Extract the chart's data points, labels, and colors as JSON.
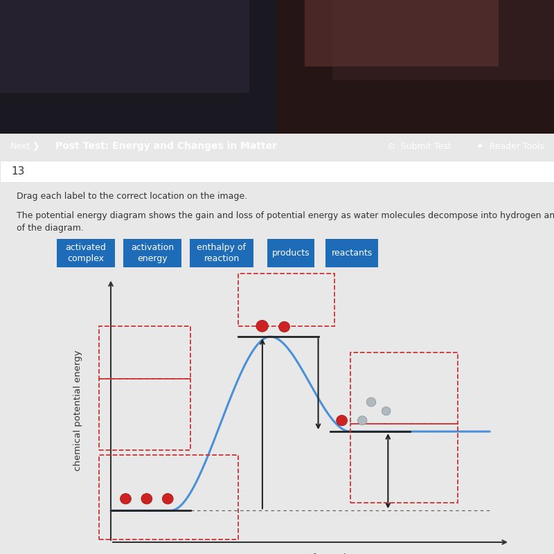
{
  "bg_color": "#e8e8e8",
  "top_photo_color": "#1a1a2e",
  "top_bar_color": "#1e6bb8",
  "top_bar_text": "Post Test: Energy and Changes in Matter",
  "question_number": "13",
  "instruction1": "Drag each label to the correct location on the image.",
  "instruction2": "The potential energy diagram shows the gain and loss of potential energy as water molecules decompose into hydrogen and oxygen. Label the parts",
  "instruction3": "of the diagram.",
  "labels": [
    "activated\ncomplex",
    "activation\nenergy",
    "enthalpy of\nreaction",
    "products",
    "reactants"
  ],
  "label_color": "#1e6bb8",
  "curve_color": "#4a90d9",
  "dash_box_color": "#cc3333",
  "reactant_level": 0.12,
  "product_level": 0.42,
  "peak_level": 0.78,
  "xlabel": "progress of reaction",
  "ylabel": "chemical potential energy",
  "content_bg": "#f0eff0"
}
